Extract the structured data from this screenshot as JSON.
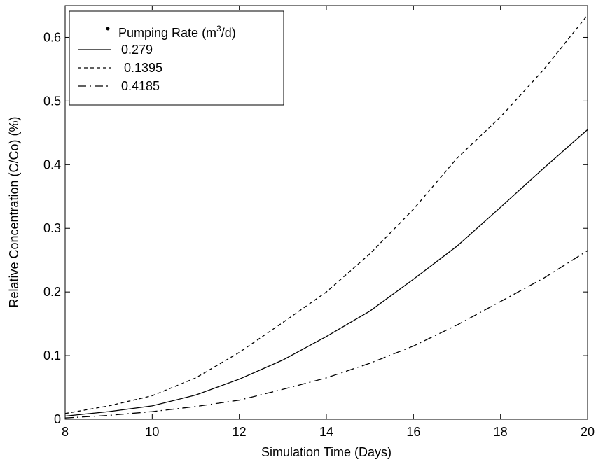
{
  "chart_data": {
    "type": "line",
    "title": "",
    "xlabel": "Simulation Time (Days)",
    "ylabel": "Relative Concentration (C/Co)  (%)",
    "xlim": [
      8,
      20
    ],
    "ylim": [
      0,
      0.65
    ],
    "xticks": [
      "8",
      "10",
      "12",
      "14",
      "16",
      "18",
      "20"
    ],
    "yticks": [
      "0",
      "0.1",
      "0.2",
      "0.3",
      "0.4",
      "0.5",
      "0.6"
    ],
    "grid": false,
    "legend": {
      "placement": "top-left",
      "title_prefix": "Pumping  Rate (m",
      "title_sup": "3",
      "title_suffix": "/d)"
    },
    "x": [
      8,
      9,
      10,
      11,
      12,
      13,
      14,
      15,
      16,
      17,
      18,
      19,
      20
    ],
    "series": [
      {
        "name": "0.279",
        "style": "solid",
        "values": [
          0.005,
          0.012,
          0.021,
          0.038,
          0.063,
          0.093,
          0.13,
          0.17,
          0.22,
          0.272,
          0.333,
          0.395,
          0.455
        ]
      },
      {
        "name": "0.1395",
        "style": "dashed",
        "values": [
          0.009,
          0.021,
          0.037,
          0.065,
          0.105,
          0.152,
          0.2,
          0.26,
          0.33,
          0.41,
          0.475,
          0.55,
          0.635
        ]
      },
      {
        "name": "0.4185",
        "style": "dashdot",
        "values": [
          0.002,
          0.006,
          0.012,
          0.02,
          0.03,
          0.047,
          0.065,
          0.088,
          0.115,
          0.148,
          0.185,
          0.222,
          0.265
        ]
      }
    ]
  }
}
